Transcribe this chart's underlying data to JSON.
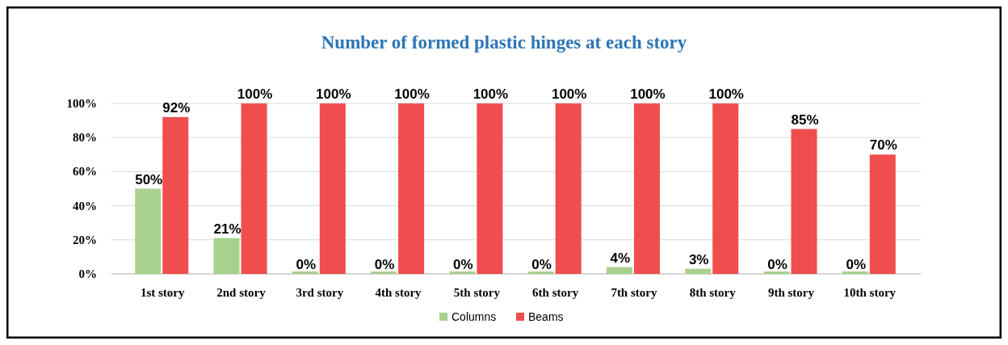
{
  "chart_data": {
    "type": "bar",
    "title": "Number of formed plastic hinges at each story",
    "categories": [
      "1st story",
      "2nd story",
      "3rd story",
      "4th story",
      "5th story",
      "6th story",
      "7th story",
      "8th story",
      "9th story",
      "10th story"
    ],
    "series": [
      {
        "name": "Columns",
        "color": "#a9d18e",
        "values": [
          50,
          21,
          0,
          0,
          0,
          0,
          4,
          3,
          0,
          0
        ],
        "value_labels": [
          "50%",
          "21%",
          "0%",
          "0%",
          "0%",
          "0%",
          "4%",
          "3%",
          "0%",
          "0%"
        ]
      },
      {
        "name": "Beams",
        "color": "#f04e4e",
        "values": [
          92,
          100,
          100,
          100,
          100,
          100,
          100,
          100,
          85,
          70
        ],
        "value_labels": [
          "92%",
          "100%",
          "100%",
          "100%",
          "100%",
          "100%",
          "100%",
          "100%",
          "85%",
          "70%"
        ]
      }
    ],
    "ylim": [
      0,
      100
    ],
    "yticks": [
      {
        "value": 0,
        "label": "0%"
      },
      {
        "value": 20,
        "label": "20%"
      },
      {
        "value": 40,
        "label": "40%"
      },
      {
        "value": 60,
        "label": "60%"
      },
      {
        "value": 80,
        "label": "80%"
      },
      {
        "value": 100,
        "label": "100%"
      }
    ],
    "grid": "y",
    "legend": "bottom"
  }
}
